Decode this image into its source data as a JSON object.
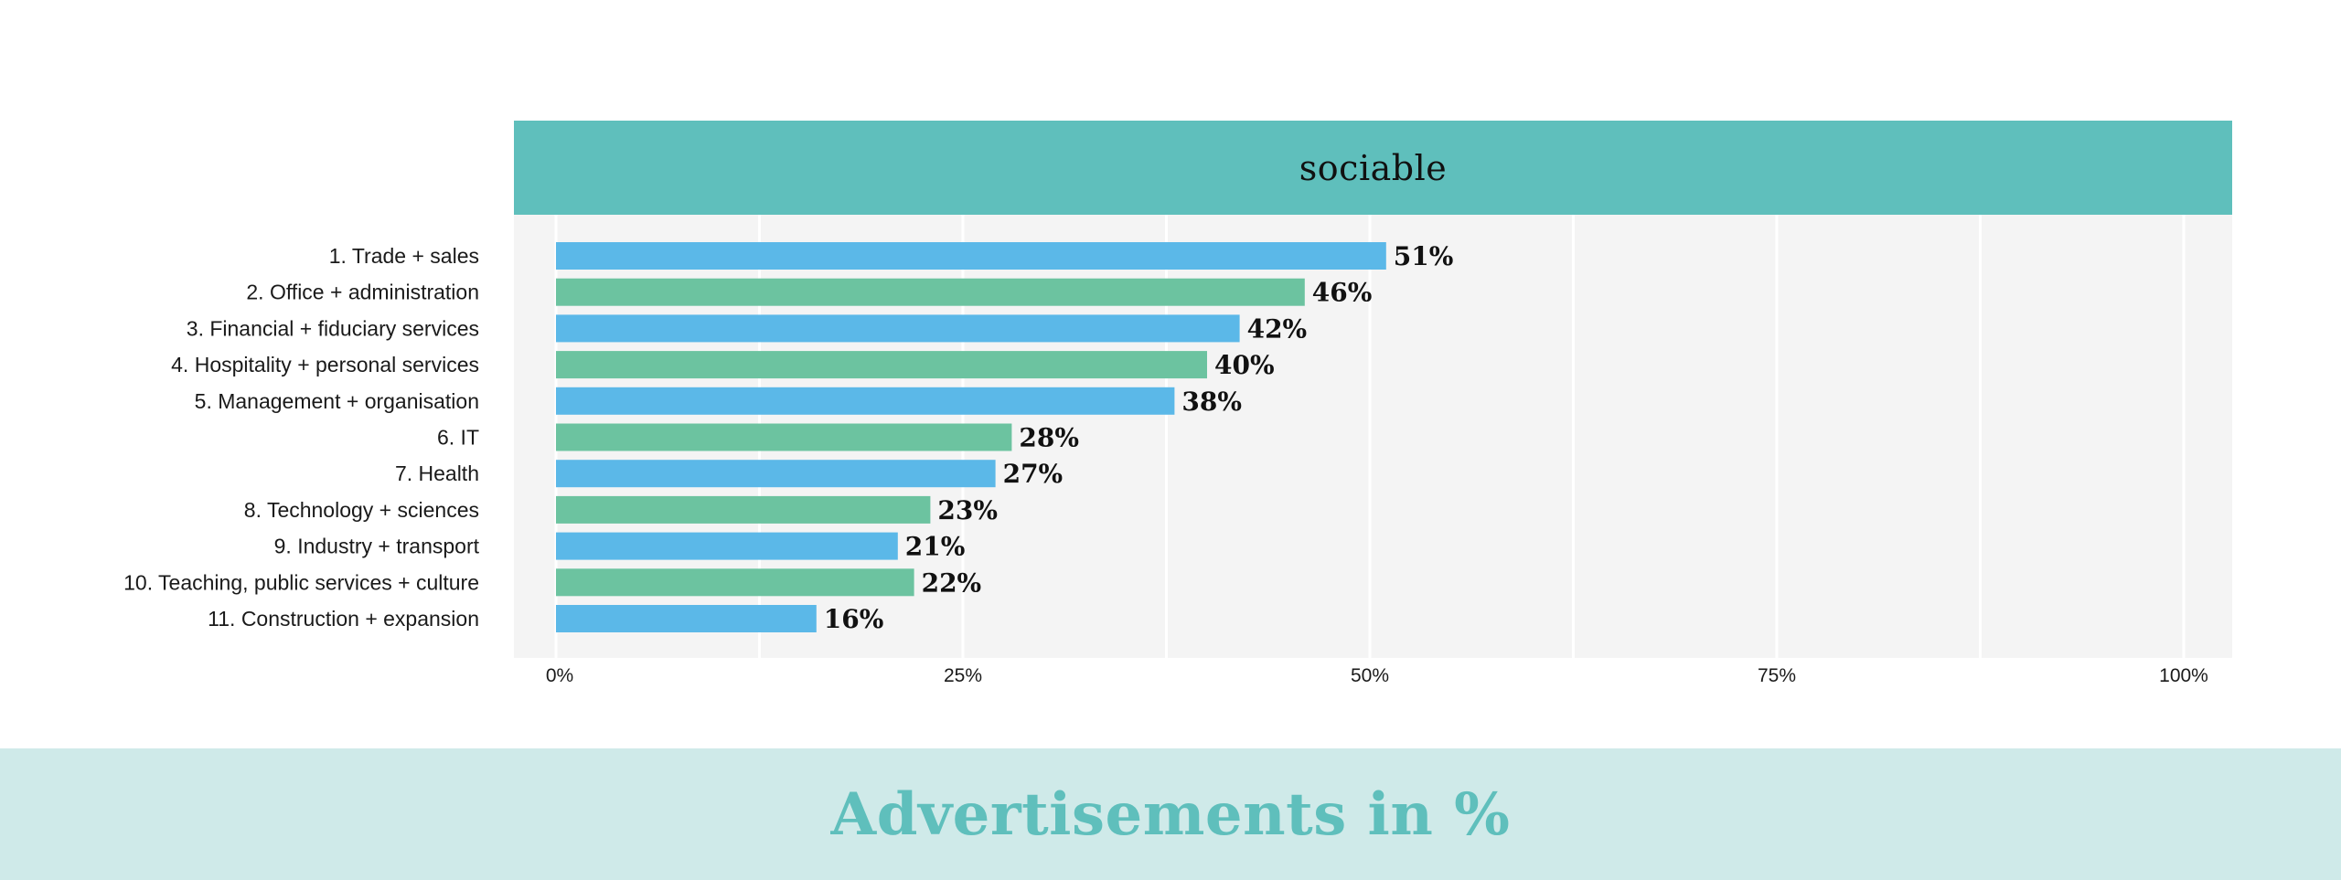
{
  "header": {
    "title": "sociable"
  },
  "footer": {
    "title": "Advertisements in %"
  },
  "colors": {
    "header_bg": "#5fbfbc",
    "plot_bg": "#f4f4f4",
    "bar_blue": "#5bb8e8",
    "bar_green": "#6cc3a0",
    "footer_bg": "#cfeae9",
    "footer_text": "#5fbfbc"
  },
  "chart_data": {
    "type": "bar",
    "orientation": "horizontal",
    "title": "sociable",
    "xlabel": "",
    "ylabel": "",
    "xlim": [
      0,
      100
    ],
    "x_ticks": [
      "0%",
      "25%",
      "50%",
      "75%",
      "100%"
    ],
    "grid": true,
    "categories": [
      "1. Trade + sales",
      "2. Office + administration",
      "3. Financial + fiduciary services",
      "4. Hospitality + personal services",
      "5. Management + organisation",
      "6. IT",
      "7. Health",
      "8. Technology + sciences",
      "9. Industry + transport",
      "10. Teaching, public services + culture",
      "11. Construction + expansion"
    ],
    "values": [
      51,
      46,
      42,
      40,
      38,
      28,
      27,
      23,
      21,
      22,
      16
    ],
    "value_labels": [
      "51%",
      "46%",
      "42%",
      "40%",
      "38%",
      "28%",
      "27%",
      "23%",
      "21%",
      "22%",
      "16%"
    ]
  }
}
